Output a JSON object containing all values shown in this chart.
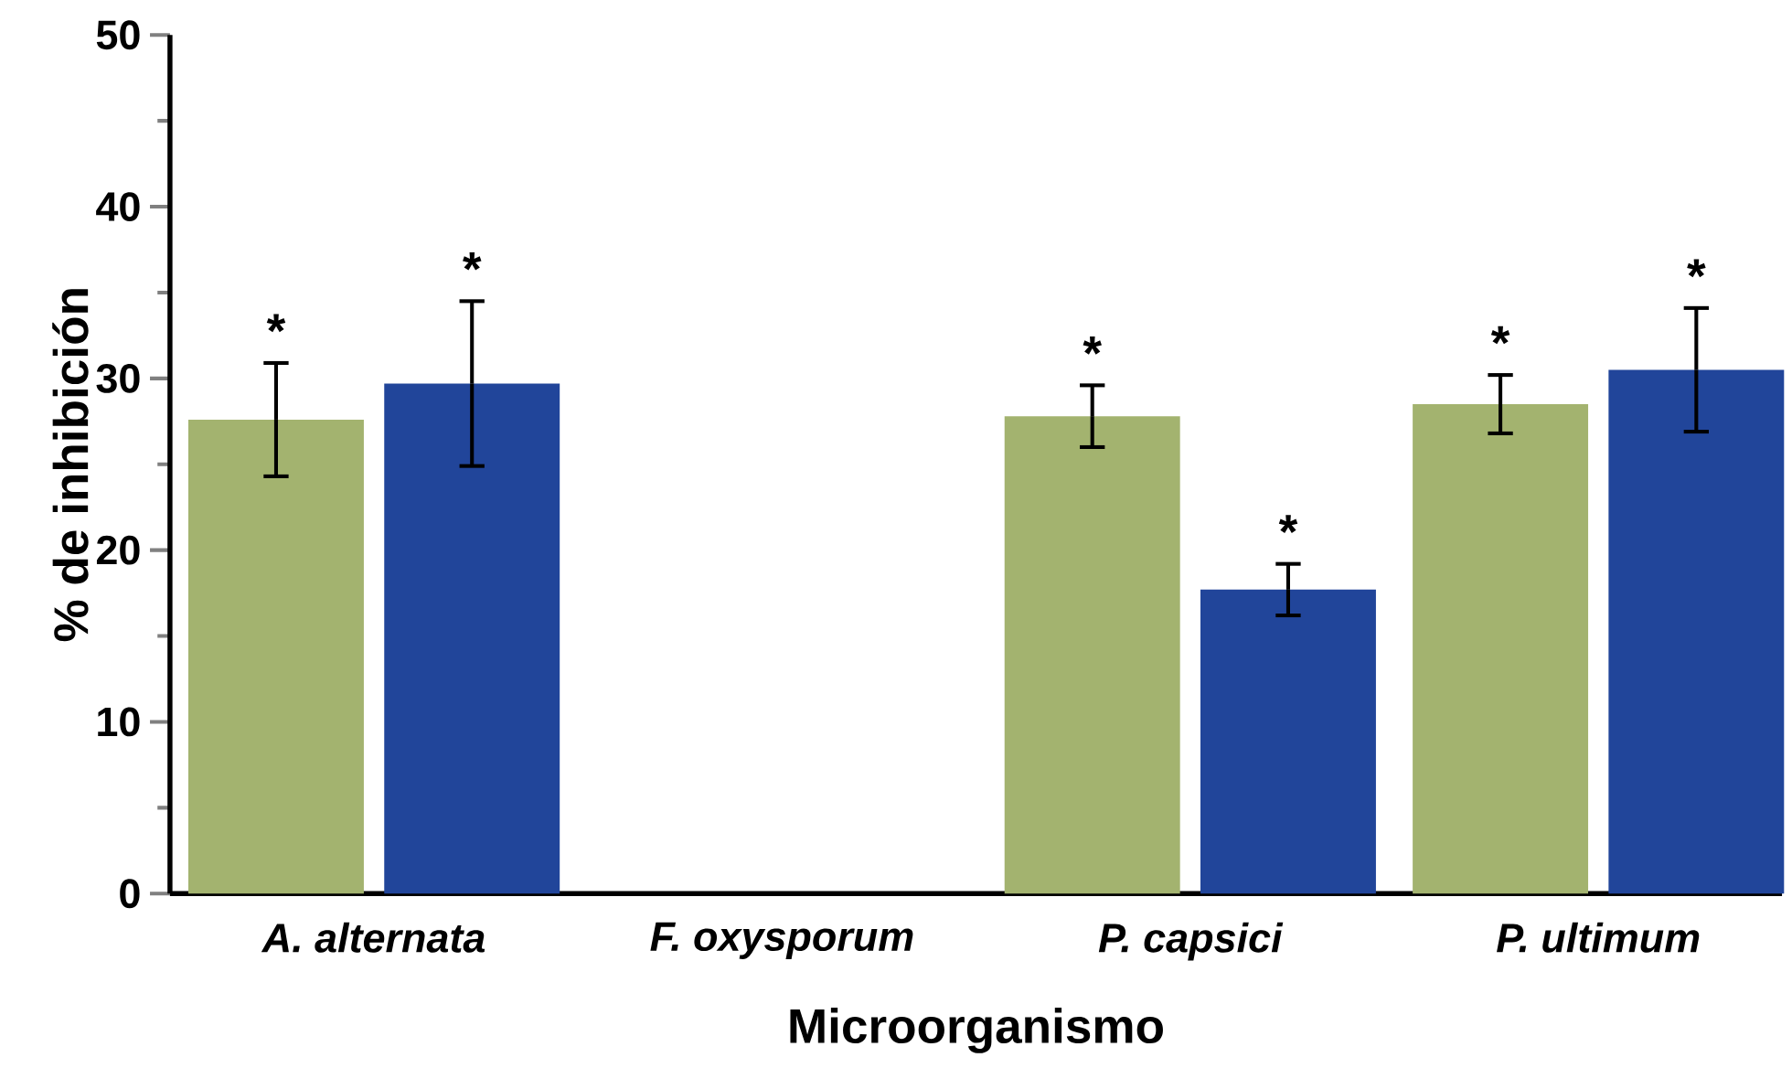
{
  "chart_data": {
    "type": "bar",
    "xlabel": "Microorganismo",
    "ylabel": "% de inhibición",
    "categories": [
      "A. alternata",
      "F. oxysporum",
      "P. capsici",
      "P. ultimum"
    ],
    "series": [
      {
        "color": "#a3b36f",
        "values": [
          27.6,
          0,
          27.8,
          28.5
        ],
        "errors": [
          3.3,
          null,
          1.8,
          1.7
        ]
      },
      {
        "color": "#21459a",
        "values": [
          29.7,
          0,
          17.7,
          30.5
        ],
        "errors": [
          4.8,
          null,
          1.5,
          3.6
        ]
      }
    ],
    "ylim": [
      0,
      50
    ],
    "yticks": [
      0,
      10,
      20,
      30,
      40,
      50
    ],
    "grid": false,
    "legend": false,
    "annotations": [
      "*",
      "*",
      "*",
      "*",
      "*",
      "*"
    ]
  }
}
